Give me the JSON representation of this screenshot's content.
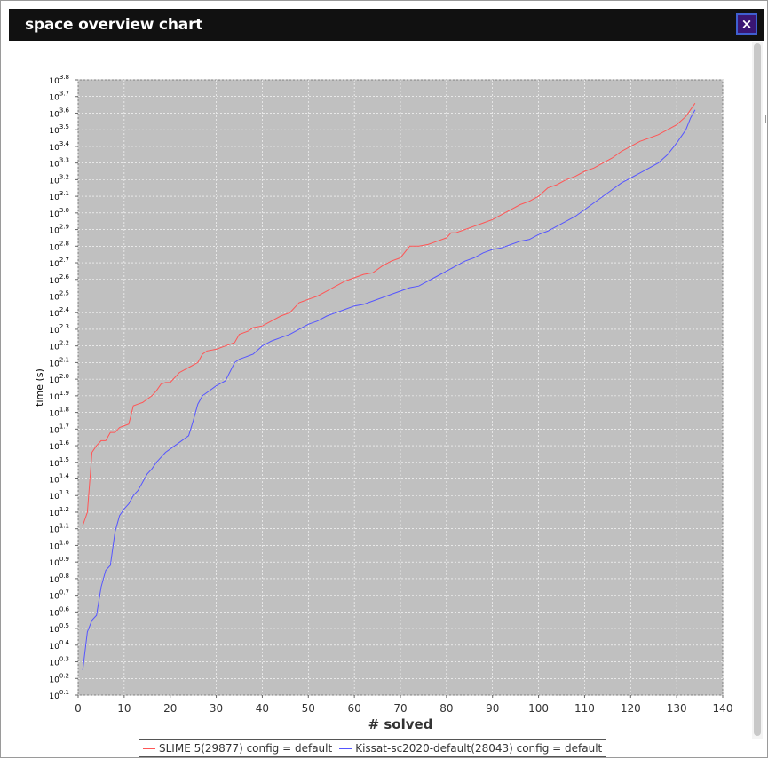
{
  "window": {
    "title": "space overview chart",
    "close_icon": "×"
  },
  "chart_data": {
    "type": "line",
    "title": "",
    "xlabel": "# solved",
    "ylabel": "time (s)",
    "xlim": [
      0,
      140
    ],
    "ylim_log10": [
      0.1,
      3.8
    ],
    "y_scale": "log10",
    "x_ticks": [
      0,
      10,
      20,
      30,
      40,
      50,
      60,
      70,
      80,
      90,
      100,
      110,
      120,
      130,
      140
    ],
    "y_tick_base": "10",
    "y_tick_exponents": [
      "0.1",
      "0.2",
      "0.3",
      "0.4",
      "0.5",
      "0.6",
      "0.7",
      "0.8",
      "0.9",
      "1.0",
      "1.1",
      "1.2",
      "1.3",
      "1.4",
      "1.5",
      "1.6",
      "1.7",
      "1.8",
      "1.9",
      "2.0",
      "2.1",
      "2.2",
      "2.3",
      "2.4",
      "2.5",
      "2.6",
      "2.7",
      "2.8",
      "2.9",
      "3.0",
      "3.1",
      "3.2",
      "3.3",
      "3.4",
      "3.5",
      "3.6",
      "3.7",
      "3.8"
    ],
    "grid": true,
    "background": "#c0c0c0",
    "legend_position": "bottom",
    "series": [
      {
        "name": "SLIME 5(29877) config = default",
        "color": "#ff5555",
        "x": [
          1,
          2,
          3,
          4,
          5,
          6,
          7,
          8,
          9,
          10,
          11,
          12,
          13,
          14,
          15,
          16,
          17,
          18,
          19,
          20,
          22,
          24,
          26,
          27,
          28,
          30,
          32,
          34,
          35,
          37,
          38,
          40,
          42,
          44,
          46,
          48,
          49,
          50,
          52,
          54,
          56,
          58,
          60,
          62,
          64,
          66,
          68,
          70,
          72,
          74,
          76,
          78,
          80,
          81,
          82,
          84,
          86,
          88,
          90,
          92,
          94,
          96,
          98,
          100,
          102,
          104,
          106,
          108,
          110,
          112,
          114,
          116,
          118,
          120,
          122,
          124,
          126,
          128,
          130,
          132,
          133,
          134
        ],
        "log10_y": [
          1.12,
          1.2,
          1.56,
          1.6,
          1.63,
          1.63,
          1.68,
          1.68,
          1.71,
          1.72,
          1.73,
          1.84,
          1.85,
          1.86,
          1.88,
          1.9,
          1.93,
          1.97,
          1.98,
          1.98,
          2.04,
          2.07,
          2.1,
          2.15,
          2.17,
          2.18,
          2.2,
          2.22,
          2.27,
          2.29,
          2.31,
          2.32,
          2.35,
          2.38,
          2.4,
          2.46,
          2.47,
          2.48,
          2.5,
          2.53,
          2.56,
          2.59,
          2.61,
          2.63,
          2.64,
          2.68,
          2.71,
          2.73,
          2.8,
          2.8,
          2.81,
          2.83,
          2.85,
          2.88,
          2.88,
          2.9,
          2.92,
          2.94,
          2.96,
          2.99,
          3.02,
          3.05,
          3.07,
          3.1,
          3.15,
          3.17,
          3.2,
          3.22,
          3.25,
          3.27,
          3.3,
          3.33,
          3.37,
          3.4,
          3.43,
          3.45,
          3.47,
          3.5,
          3.53,
          3.58,
          3.62,
          3.66
        ]
      },
      {
        "name": "Kissat-sc2020-default(28043) config = default",
        "color": "#5555ff",
        "x": [
          1,
          2,
          3,
          4,
          5,
          6,
          7,
          8,
          9,
          10,
          11,
          12,
          13,
          14,
          15,
          16,
          17,
          18,
          19,
          20,
          22,
          24,
          25,
          26,
          27,
          28,
          30,
          32,
          34,
          35,
          36,
          37,
          38,
          40,
          42,
          44,
          46,
          48,
          50,
          52,
          54,
          56,
          58,
          60,
          62,
          64,
          66,
          68,
          70,
          72,
          74,
          76,
          78,
          80,
          82,
          84,
          86,
          88,
          90,
          92,
          94,
          96,
          98,
          100,
          102,
          104,
          106,
          108,
          110,
          112,
          114,
          116,
          118,
          120,
          122,
          124,
          126,
          128,
          130,
          132,
          133,
          134
        ],
        "log10_y": [
          0.25,
          0.48,
          0.55,
          0.58,
          0.75,
          0.85,
          0.88,
          1.08,
          1.18,
          1.22,
          1.25,
          1.3,
          1.33,
          1.38,
          1.43,
          1.46,
          1.5,
          1.53,
          1.56,
          1.58,
          1.62,
          1.66,
          1.75,
          1.85,
          1.9,
          1.92,
          1.96,
          1.99,
          2.1,
          2.12,
          2.13,
          2.14,
          2.15,
          2.2,
          2.23,
          2.25,
          2.27,
          2.3,
          2.33,
          2.35,
          2.38,
          2.4,
          2.42,
          2.44,
          2.45,
          2.47,
          2.49,
          2.51,
          2.53,
          2.55,
          2.56,
          2.59,
          2.62,
          2.65,
          2.68,
          2.71,
          2.73,
          2.76,
          2.78,
          2.79,
          2.81,
          2.83,
          2.84,
          2.87,
          2.89,
          2.92,
          2.95,
          2.98,
          3.02,
          3.06,
          3.1,
          3.14,
          3.18,
          3.21,
          3.24,
          3.27,
          3.3,
          3.35,
          3.42,
          3.5,
          3.57,
          3.62
        ]
      }
    ]
  }
}
